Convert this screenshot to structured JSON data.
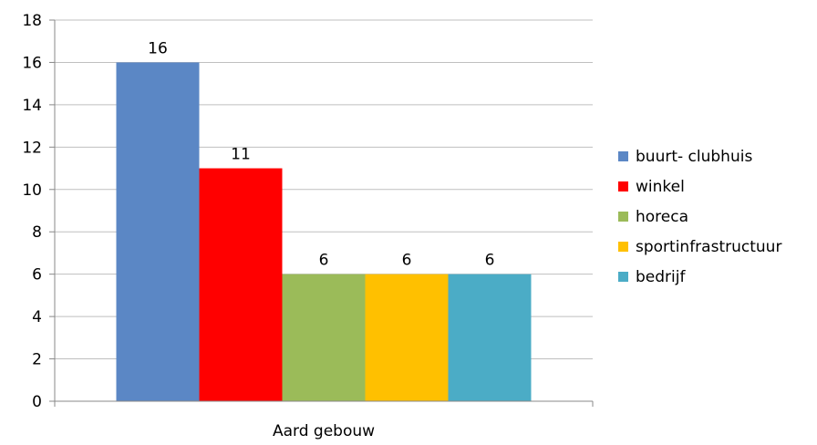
{
  "chart_data": {
    "type": "bar",
    "categories": [
      "Aard gebouw"
    ],
    "series": [
      {
        "name": "buurt- clubhuis",
        "values": [
          16
        ],
        "color": "#5b87c5"
      },
      {
        "name": "winkel",
        "values": [
          11
        ],
        "color": "#ff0000"
      },
      {
        "name": "horeca",
        "values": [
          6
        ],
        "color": "#9bbb59"
      },
      {
        "name": "sportinfrastructuur",
        "values": [
          6
        ],
        "color": "#ffc000"
      },
      {
        "name": "bedrijf",
        "values": [
          6
        ],
        "color": "#4bacc6"
      }
    ],
    "ylim": [
      0,
      18
    ],
    "yticks": [
      0,
      2,
      4,
      6,
      8,
      10,
      12,
      14,
      16,
      18
    ],
    "data_labels": true,
    "grid": true,
    "legend": "right",
    "title": "",
    "xlabel": "",
    "ylabel": ""
  }
}
